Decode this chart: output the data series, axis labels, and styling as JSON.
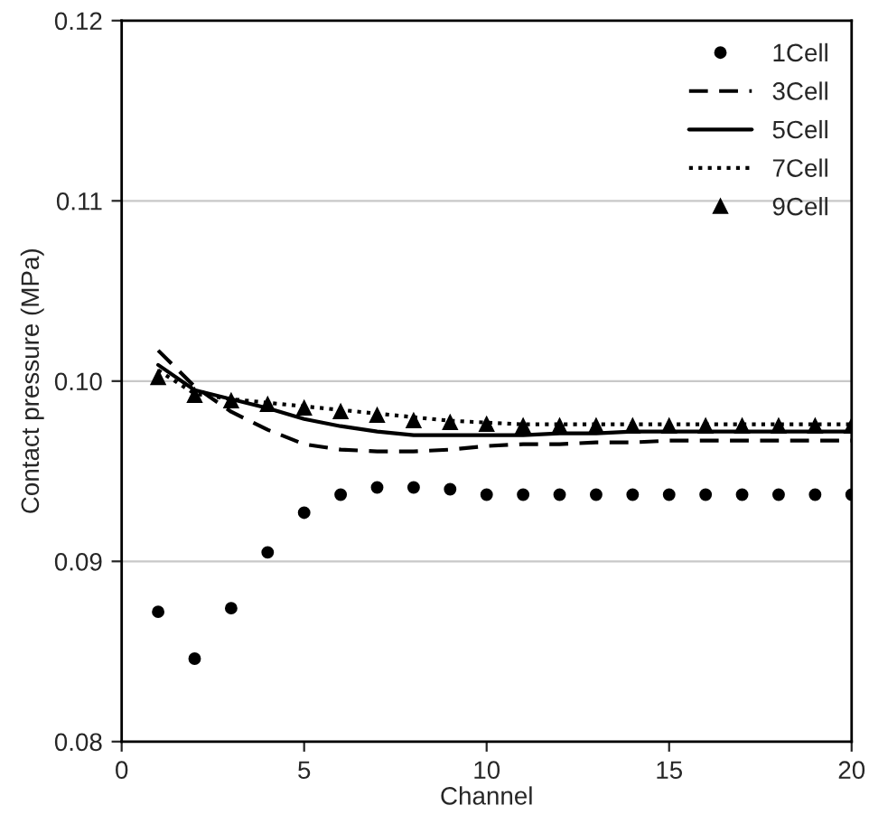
{
  "chart_data": {
    "type": "line",
    "xlabel": "Channel",
    "ylabel": "Contact pressure (MPa)",
    "x": [
      1,
      2,
      3,
      4,
      5,
      6,
      7,
      8,
      9,
      10,
      11,
      12,
      13,
      14,
      15,
      16,
      17,
      18,
      19,
      20
    ],
    "xlim": [
      0,
      20
    ],
    "xticks": [
      0,
      5,
      10,
      15,
      20
    ],
    "ylim": [
      0.08,
      0.12
    ],
    "yticks": [
      {
        "value": 0.08,
        "label": "0.08"
      },
      {
        "value": 0.09,
        "label": "0.09"
      },
      {
        "value": 0.1,
        "label": "0.10"
      },
      {
        "value": 0.11,
        "label": "0.11"
      },
      {
        "value": 0.12,
        "label": "0.12"
      }
    ],
    "grid": "y",
    "legend": "top right",
    "series": [
      {
        "name": "1Cell",
        "type": "scatter",
        "marker": "circle",
        "color": "#000000",
        "values": [
          0.0872,
          0.0846,
          0.0874,
          0.0905,
          0.0927,
          0.0937,
          0.0941,
          0.0941,
          0.094,
          0.0937,
          0.0937,
          0.0937,
          0.0937,
          0.0937,
          0.0937,
          0.0937,
          0.0937,
          0.0937,
          0.0937,
          0.0937
        ]
      },
      {
        "name": "3Cell",
        "line_style": "dashed",
        "color": "#000000",
        "values": [
          0.1017,
          0.0997,
          0.0983,
          0.0973,
          0.0965,
          0.0962,
          0.0961,
          0.0961,
          0.0962,
          0.0964,
          0.0965,
          0.0965,
          0.0966,
          0.0966,
          0.0967,
          0.0967,
          0.0967,
          0.0967,
          0.0967,
          0.0967
        ]
      },
      {
        "name": "5Cell",
        "line_style": "solid",
        "color": "#000000",
        "values": [
          0.1009,
          0.0995,
          0.099,
          0.0985,
          0.0979,
          0.0975,
          0.0972,
          0.097,
          0.097,
          0.097,
          0.097,
          0.0971,
          0.0971,
          0.0972,
          0.0972,
          0.0972,
          0.0972,
          0.0972,
          0.0972,
          0.0972
        ]
      },
      {
        "name": "7Cell",
        "line_style": "dotted",
        "color": "#000000",
        "values": [
          0.1006,
          0.0993,
          0.099,
          0.0988,
          0.0986,
          0.0984,
          0.0982,
          0.098,
          0.0978,
          0.0977,
          0.0976,
          0.0976,
          0.0976,
          0.0976,
          0.0976,
          0.0976,
          0.0976,
          0.0976,
          0.0976,
          0.0976
        ]
      },
      {
        "name": "9Cell",
        "type": "scatter",
        "marker": "triangle",
        "color": "#000000",
        "values": [
          0.1002,
          0.0992,
          0.0989,
          0.0987,
          0.0985,
          0.0983,
          0.0981,
          0.0978,
          0.0977,
          0.0976,
          0.0975,
          0.0975,
          0.0975,
          0.0975,
          0.0975,
          0.0975,
          0.0975,
          0.0975,
          0.0975,
          0.0975
        ]
      }
    ]
  }
}
